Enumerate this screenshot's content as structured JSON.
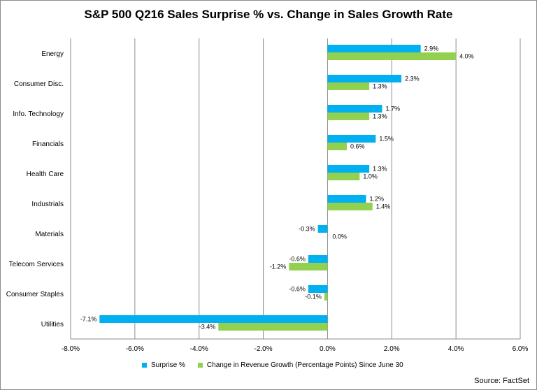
{
  "chart_data": {
    "type": "bar",
    "orientation": "horizontal",
    "title": "S&P 500 Q216 Sales Surprise % vs. Change in Sales Growth Rate",
    "categories": [
      "Energy",
      "Consumer Disc.",
      "Info. Technology",
      "Financials",
      "Health Care",
      "Industrials",
      "Materials",
      "Telecom Services",
      "Consumer Staples",
      "Utilities"
    ],
    "series": [
      {
        "name": "Surprise %",
        "color": "#00b0f0",
        "values": [
          2.9,
          2.3,
          1.7,
          1.5,
          1.3,
          1.2,
          -0.3,
          -0.6,
          -0.6,
          -7.1
        ],
        "labels": [
          "2.9%",
          "2.3%",
          "1.7%",
          "1.5%",
          "1.3%",
          "1.2%",
          "-0.3%",
          "-0.6%",
          "-0.6%",
          "-7.1%"
        ]
      },
      {
        "name": "Change in Revenue Growth (Percentage Points) Since June 30",
        "color": "#92d050",
        "values": [
          4.0,
          1.3,
          1.3,
          0.6,
          1.0,
          1.4,
          0.0,
          -1.2,
          -0.1,
          -3.4
        ],
        "labels": [
          "4.0%",
          "1.3%",
          "1.3%",
          "0.6%",
          "1.0%",
          "1.4%",
          "0.0%",
          "-1.2%",
          "-0.1%",
          "-3.4%"
        ]
      }
    ],
    "xlim": [
      -8,
      6
    ],
    "xticks": [
      -8,
      -6,
      -4,
      -2,
      0,
      2,
      4,
      6
    ],
    "xtick_labels": [
      "-8.0%",
      "-6.0%",
      "-4.0%",
      "-2.0%",
      "0.0%",
      "2.0%",
      "4.0%",
      "6.0%"
    ],
    "grid": "vertical",
    "legend_position": "bottom",
    "source": "Source: FactSet"
  }
}
